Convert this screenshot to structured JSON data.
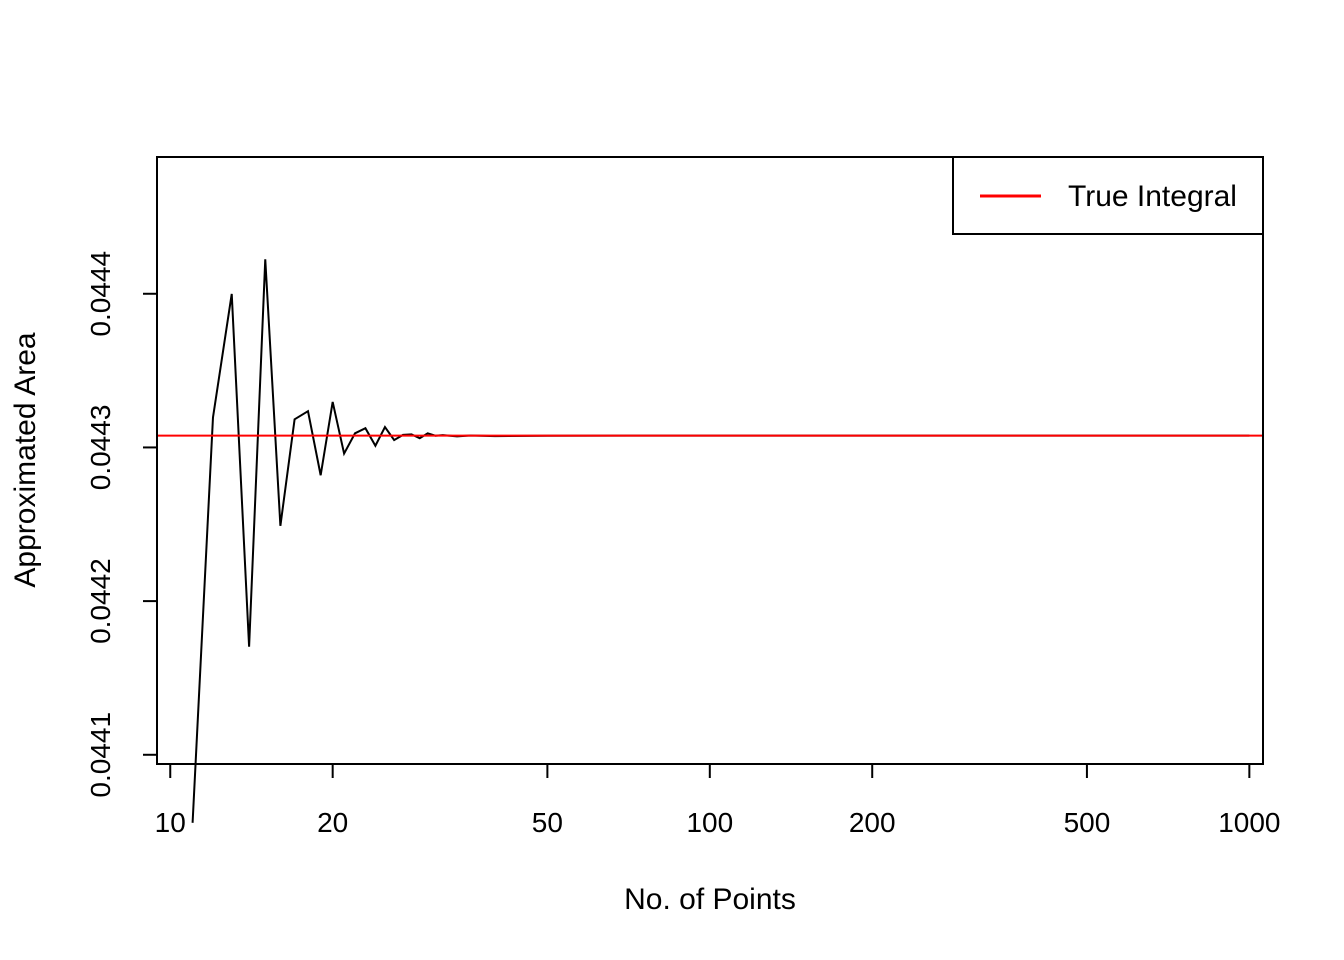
{
  "chart_data": {
    "type": "line",
    "title": "",
    "xlabel": "No. of Points",
    "ylabel": "Approximated Area",
    "x_scale": "log",
    "xlim": [
      9.45,
      1060
    ],
    "ylim": [
      0.044094,
      0.044489
    ],
    "x_ticks": [
      10,
      20,
      50,
      100,
      200,
      500,
      1000
    ],
    "x_tick_labels": [
      "10",
      "20",
      "50",
      "100",
      "200",
      "500",
      "1000"
    ],
    "y_ticks": [
      0.0441,
      0.0442,
      0.0443,
      0.0444
    ],
    "y_tick_labels": [
      "0.0441",
      "0.0442",
      "0.0443",
      "0.0444"
    ],
    "grid": false,
    "legend": {
      "position": "top-right",
      "entries": [
        {
          "label": "True Integral",
          "color": "#ff0000"
        }
      ]
    },
    "true_integral": 0.0443077,
    "series": [
      {
        "color": "#000000",
        "x": [
          11,
          12,
          13,
          14,
          15,
          16,
          17,
          18,
          19,
          20,
          21,
          22,
          23,
          24,
          25,
          26,
          27,
          28,
          29,
          30,
          31,
          32,
          34,
          36,
          40,
          50,
          70,
          100,
          200,
          500,
          1000
        ],
        "y": [
          0.0440557,
          0.0443195,
          0.0443999,
          0.0441703,
          0.0444224,
          0.044249,
          0.0443183,
          0.0443236,
          0.0442819,
          0.0443296,
          0.044296,
          0.0443092,
          0.0443125,
          0.0443011,
          0.0443133,
          0.0443048,
          0.0443082,
          0.0443085,
          0.044306,
          0.0443092,
          0.0443076,
          0.044308,
          0.0443072,
          0.0443078,
          0.0443074,
          0.0443076,
          0.0443077,
          0.0443077,
          0.0443077,
          0.0443077,
          0.0443077
        ]
      }
    ]
  }
}
